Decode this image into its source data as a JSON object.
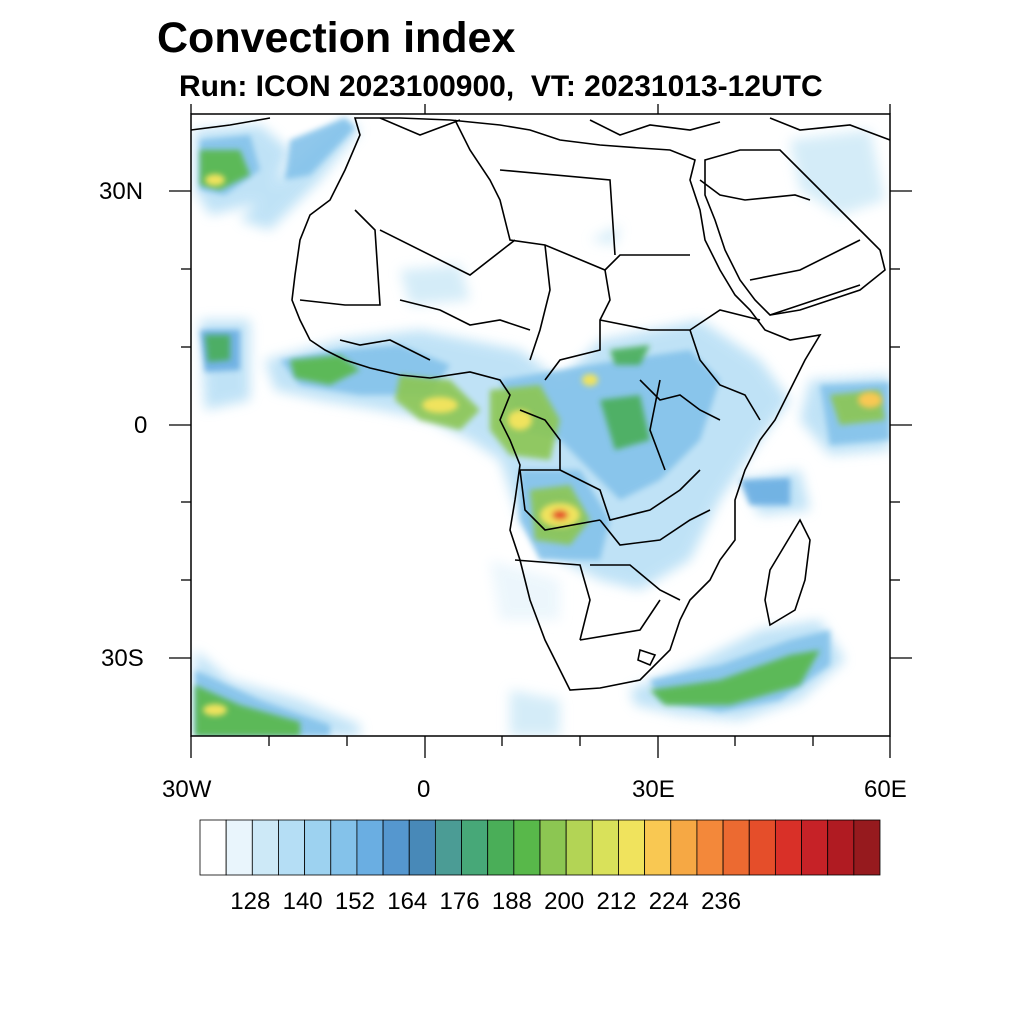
{
  "title": "Convection index",
  "subtitle": "Run: ICON 2023100900,  VT: 20231013-12UTC",
  "map": {
    "region": "Africa",
    "lon_range": [
      -30,
      60
    ],
    "lat_range": [
      -40,
      40
    ],
    "lat_labels": [
      "30N",
      "0",
      "30S"
    ],
    "lon_labels": [
      "30W",
      "0",
      "30E",
      "60E"
    ],
    "lat_tick_values": [
      30,
      0,
      -30
    ],
    "lon_tick_values": [
      -30,
      0,
      30,
      60
    ]
  },
  "colorbar": {
    "tick_labels": [
      "128",
      "140",
      "152",
      "164",
      "176",
      "188",
      "200",
      "212",
      "224",
      "236"
    ],
    "colors": [
      "#ffffff",
      "#e9f5fc",
      "#cde9f7",
      "#b5def5",
      "#9dd2f0",
      "#84c2ea",
      "#6aaee2",
      "#5597cf",
      "#4889b8",
      "#4b9c95",
      "#47a878",
      "#4aae58",
      "#58b84a",
      "#8cc652",
      "#b3d455",
      "#d9e15a",
      "#f0e35d",
      "#f9c852",
      "#f6a844",
      "#f3883a",
      "#ec6a31",
      "#e54e2a",
      "#d93028",
      "#c62227",
      "#b01b22",
      "#961a1e"
    ]
  }
}
